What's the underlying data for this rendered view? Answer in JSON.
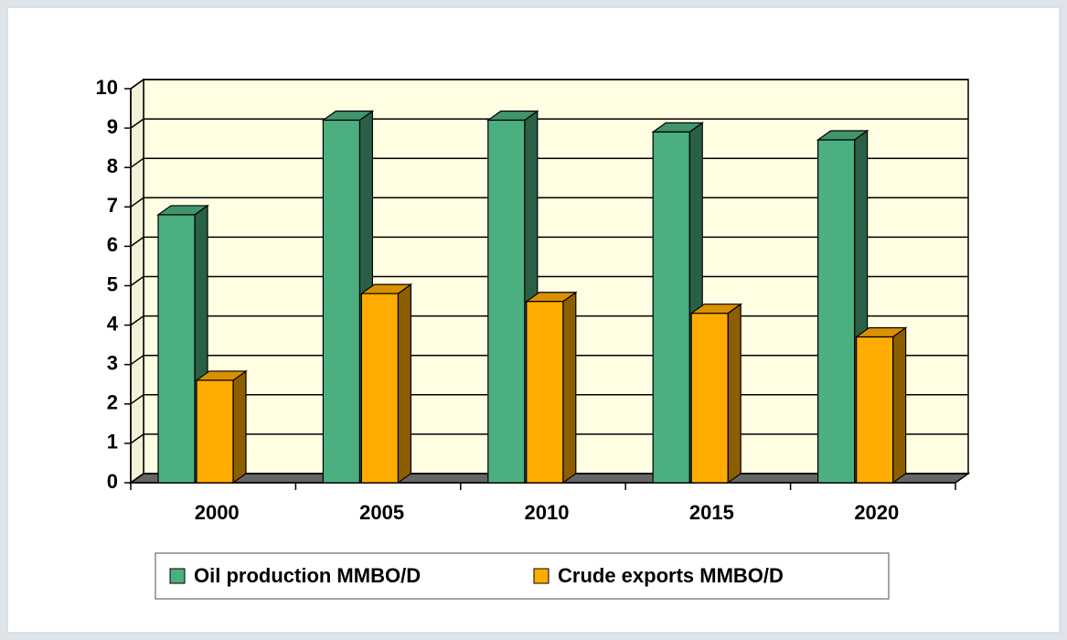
{
  "chart_data": {
    "type": "bar3d",
    "categories": [
      "2000",
      "2005",
      "2010",
      "2015",
      "2020"
    ],
    "series": [
      {
        "name": "Oil production MMBO/D",
        "color": "#4caf80",
        "values": [
          6.8,
          9.2,
          9.2,
          8.9,
          8.7
        ]
      },
      {
        "name": "Crude exports MMBO/D",
        "color": "#ffab00",
        "values": [
          2.6,
          4.8,
          4.6,
          4.3,
          3.7
        ]
      }
    ],
    "ylim": [
      0,
      10
    ],
    "yticks": [
      0,
      1,
      2,
      3,
      4,
      5,
      6,
      7,
      8,
      9,
      10
    ],
    "grid": true,
    "legend": "bottom"
  }
}
